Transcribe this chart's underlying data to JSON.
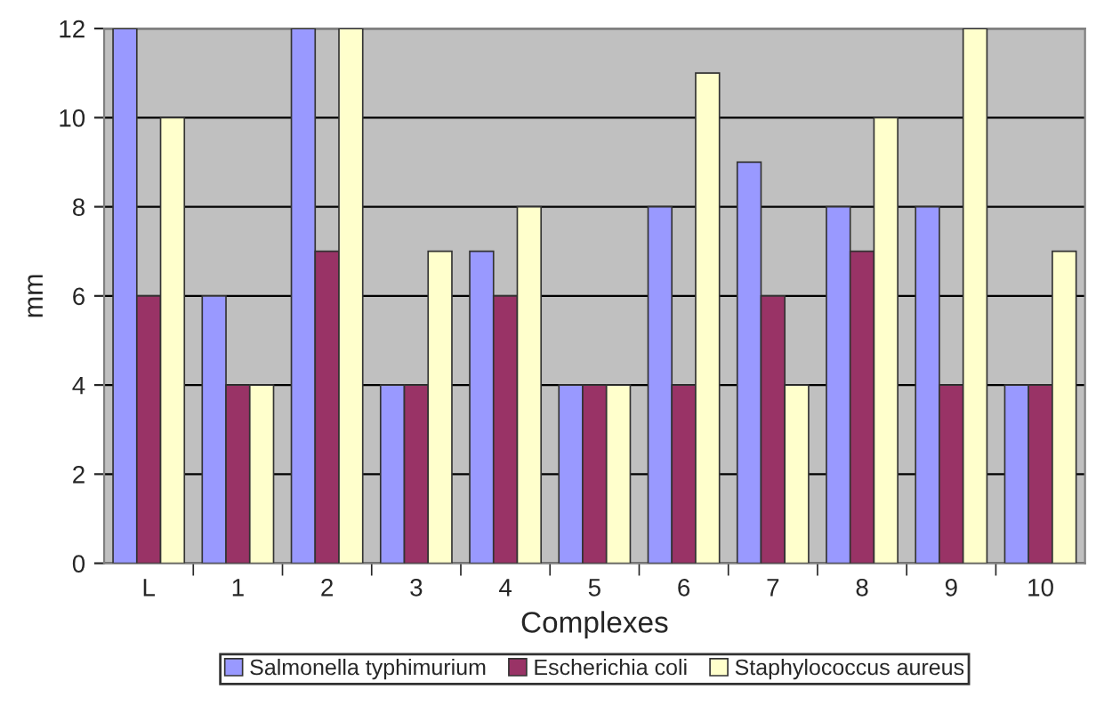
{
  "chart_data": {
    "type": "bar",
    "xlabel": "Complexes",
    "ylabel": "mm",
    "categories": [
      "L",
      "1",
      "2",
      "3",
      "4",
      "5",
      "6",
      "7",
      "8",
      "9",
      "10"
    ],
    "series": [
      {
        "name": "Salmonella typhimurium",
        "color": "#9999ff",
        "values": [
          12,
          6,
          12,
          4,
          7,
          4,
          8,
          9,
          8,
          8,
          4
        ]
      },
      {
        "name": "Escherichia coli",
        "color": "#993366",
        "values": [
          6,
          4,
          7,
          4,
          6,
          4,
          4,
          6,
          7,
          4,
          4
        ]
      },
      {
        "name": "Staphylococcus aureus",
        "color": "#ffffcc",
        "values": [
          10,
          4,
          12,
          7,
          8,
          4,
          11,
          4,
          10,
          12,
          7
        ]
      }
    ],
    "ylim": [
      0,
      12
    ],
    "yticks": [
      0,
      2,
      4,
      6,
      8,
      10,
      12
    ],
    "grid": "y",
    "legend": "bottom"
  }
}
